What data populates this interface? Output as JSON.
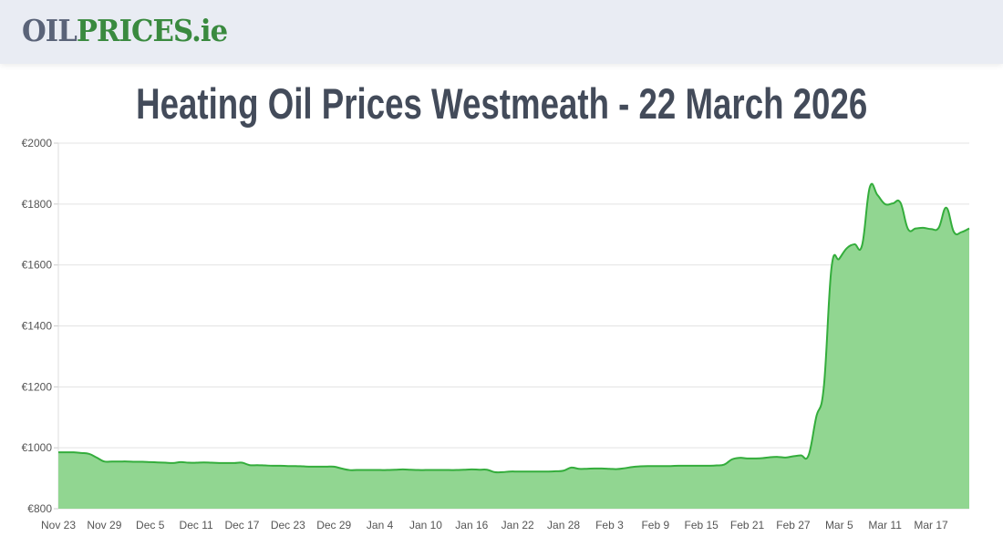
{
  "header": {
    "logo_part1": "OIL",
    "logo_part2": "PRICES.ie"
  },
  "title": "Heating Oil Prices Westmeath - 22 March 2026",
  "colors": {
    "line": "#34ad3c",
    "fill": "#91d691",
    "header_bg": "#e9ecf3",
    "logo_gray": "#5a6378",
    "logo_green": "#3a8a3f",
    "title": "#434b5a"
  },
  "chart_data": {
    "type": "area",
    "title": "",
    "xlabel": "",
    "ylabel": "",
    "ylim": [
      800,
      2000
    ],
    "y_ticks": [
      "€800",
      "€1000",
      "€1200",
      "€1400",
      "€1600",
      "€1800",
      "€2000"
    ],
    "y_tick_values": [
      800,
      1000,
      1200,
      1400,
      1600,
      1800,
      2000
    ],
    "x_ticks": [
      "Nov 23",
      "Nov 29",
      "Dec 5",
      "Dec 11",
      "Dec 17",
      "Dec 23",
      "Dec 29",
      "Jan 4",
      "Jan 10",
      "Jan 16",
      "Jan 22",
      "Jan 28",
      "Feb 3",
      "Feb 9",
      "Feb 15",
      "Feb 21",
      "Feb 27",
      "Mar 5",
      "Mar 11",
      "Mar 17"
    ],
    "grid": true,
    "values": [
      985,
      985,
      985,
      983,
      980,
      968,
      955,
      955,
      955,
      955,
      954,
      954,
      953,
      952,
      951,
      950,
      953,
      951,
      951,
      952,
      951,
      950,
      950,
      950,
      951,
      943,
      943,
      942,
      941,
      941,
      940,
      940,
      939,
      938,
      938,
      938,
      938,
      932,
      927,
      927,
      927,
      927,
      927,
      927,
      928,
      929,
      928,
      927,
      927,
      927,
      927,
      927,
      927,
      928,
      929,
      928,
      928,
      920,
      920,
      922,
      922,
      922,
      922,
      922,
      922,
      923,
      925,
      935,
      931,
      931,
      932,
      932,
      931,
      930,
      933,
      937,
      939,
      940,
      940,
      940,
      940,
      941,
      941,
      941,
      941,
      941,
      942,
      945,
      962,
      967,
      965,
      965,
      966,
      969,
      970,
      968,
      972,
      975,
      975,
      1100,
      1200,
      1590,
      1620,
      1655,
      1668,
      1665,
      1855,
      1830,
      1800,
      1802,
      1805,
      1718,
      1720,
      1722,
      1718,
      1722,
      1788,
      1708,
      1708,
      1720
    ]
  }
}
